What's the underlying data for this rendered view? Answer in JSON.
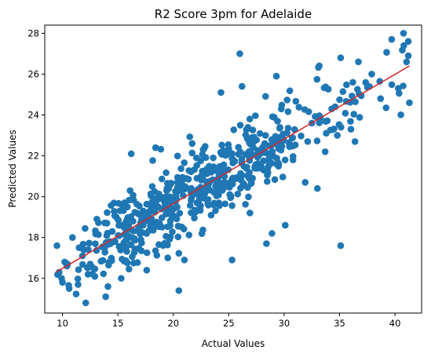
{
  "chart_data": {
    "type": "scatter",
    "title": "R2 Score 3pm for Adelaide",
    "xlabel": "Actual Values",
    "ylabel": "Predicted Values",
    "xlim": [
      8.4,
      42.4
    ],
    "ylim": [
      14.3,
      28.4
    ],
    "xticks": [
      10,
      15,
      20,
      25,
      30,
      35,
      40
    ],
    "yticks": [
      16,
      18,
      20,
      22,
      24,
      26,
      28
    ],
    "grid": false,
    "legend": "none",
    "colors": {
      "points": "#1f77b4",
      "fit_line": "#d62728"
    },
    "fit_line": {
      "x": [
        9.4,
        41.3
      ],
      "y": [
        16.3,
        26.4
      ]
    },
    "point_model": {
      "count": 620,
      "x_range": [
        9.4,
        41.3
      ],
      "noise_sd": 1.0
    },
    "points": [
      [
        9.5,
        17.6
      ],
      [
        9.7,
        16.3
      ],
      [
        10.0,
        15.8
      ],
      [
        10.2,
        16.8
      ],
      [
        10.6,
        15.5
      ],
      [
        10.9,
        18.0
      ],
      [
        11.5,
        17.5
      ],
      [
        12.1,
        14.8
      ],
      [
        12.3,
        16.2
      ],
      [
        13.9,
        15.1
      ],
      [
        14.1,
        15.6
      ],
      [
        15.3,
        16.0
      ],
      [
        16.2,
        22.1
      ],
      [
        17.6,
        16.4
      ],
      [
        18.4,
        22.4
      ],
      [
        19.5,
        17.0
      ],
      [
        20.5,
        15.4
      ],
      [
        21.0,
        16.9
      ],
      [
        24.3,
        25.1
      ],
      [
        25.3,
        16.9
      ],
      [
        26.0,
        27.0
      ],
      [
        26.2,
        25.4
      ],
      [
        28.4,
        17.7
      ],
      [
        28.9,
        18.2
      ],
      [
        29.3,
        25.9
      ],
      [
        30.1,
        18.6
      ],
      [
        31.9,
        20.7
      ],
      [
        33.0,
        20.4
      ],
      [
        34.6,
        24.4
      ],
      [
        35.1,
        17.6
      ],
      [
        35.1,
        26.8
      ],
      [
        36.7,
        26.6
      ],
      [
        37.9,
        26.0
      ],
      [
        38.7,
        24.8
      ],
      [
        39.7,
        27.7
      ],
      [
        40.3,
        25.3
      ],
      [
        40.8,
        27.4
      ],
      [
        41.2,
        26.9
      ],
      [
        41.2,
        27.6
      ],
      [
        41.3,
        24.6
      ],
      [
        36.2,
        25.6
      ],
      [
        34.8,
        23.0
      ],
      [
        33.7,
        22.2
      ],
      [
        32.5,
        23.6
      ],
      [
        30.8,
        21.8
      ],
      [
        29.6,
        22.9
      ],
      [
        27.8,
        21.4
      ],
      [
        26.9,
        23.8
      ],
      [
        23.6,
        21.9
      ],
      [
        22.4,
        20.2
      ],
      [
        21.7,
        22.6
      ],
      [
        19.8,
        19.1
      ],
      [
        18.1,
        20.5
      ],
      [
        16.9,
        18.3
      ],
      [
        15.6,
        19.7
      ],
      [
        14.3,
        17.8
      ],
      [
        13.1,
        18.9
      ],
      [
        12.5,
        16.7
      ],
      [
        11.8,
        17.1
      ],
      [
        10.4,
        16.6
      ]
    ]
  }
}
